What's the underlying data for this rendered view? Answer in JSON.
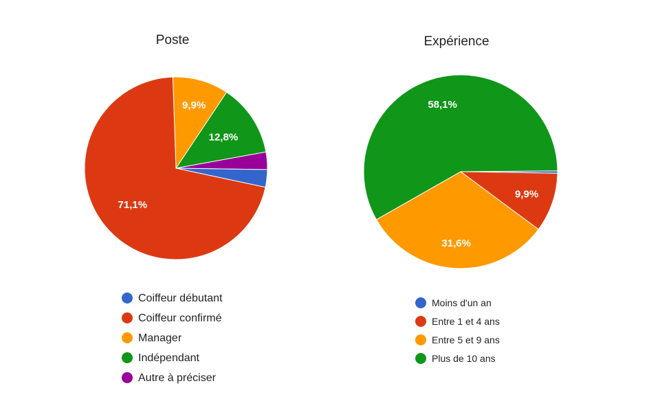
{
  "chart_data": [
    {
      "type": "pie",
      "title": "Poste",
      "categories": [
        "Coiffeur débutant",
        "Coiffeur confirmé",
        "Manager",
        "Indépendant",
        "Autre à préciser"
      ],
      "values": [
        3.1,
        71.1,
        9.9,
        12.8,
        3.1
      ],
      "slice_labels": [
        "",
        "71,1%",
        "9,9%",
        "12,8%",
        ""
      ],
      "colors": [
        "#3366cc",
        "#dc3912",
        "#ff9900",
        "#109618",
        "#990099"
      ],
      "legend_position": "bottom"
    },
    {
      "type": "pie",
      "title": "Expérience",
      "categories": [
        "Moins d'un an",
        "Entre 1 et 4 ans",
        "Entre 5 et 9 ans",
        "Plus de 10 ans"
      ],
      "values": [
        0.4,
        9.9,
        31.6,
        58.1
      ],
      "slice_labels": [
        "",
        "9,9%",
        "31,6%",
        "58,1%"
      ],
      "colors": [
        "#3366cc",
        "#dc3912",
        "#ff9900",
        "#109618"
      ],
      "legend_position": "bottom"
    }
  ]
}
